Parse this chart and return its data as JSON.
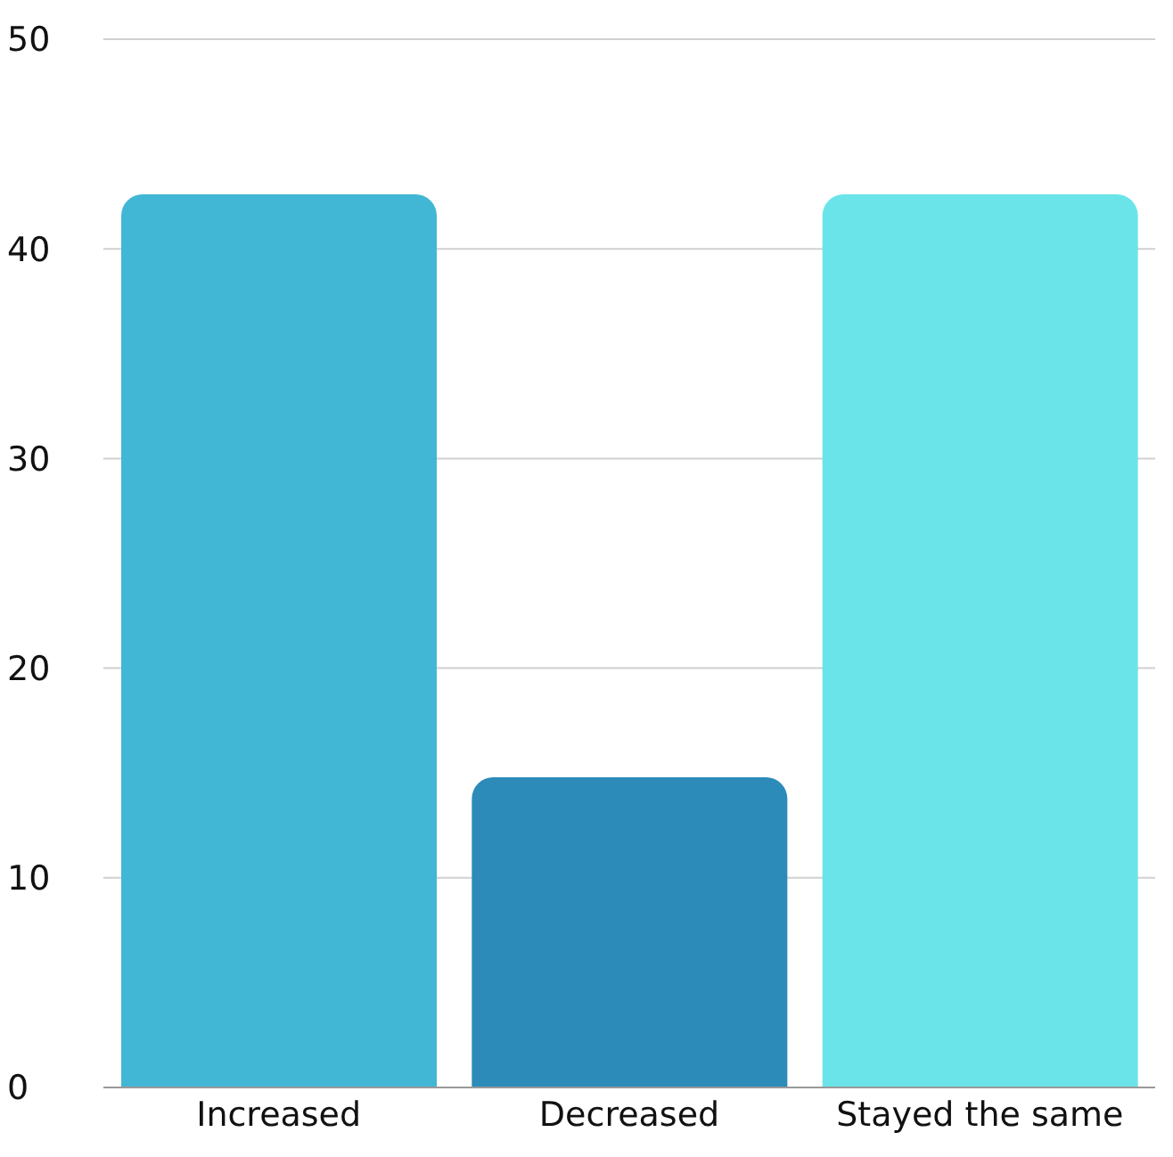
{
  "chart_data": {
    "type": "bar",
    "categories": [
      "Increased",
      "Decreased",
      "Stayed the same"
    ],
    "values": [
      42.6,
      14.8,
      42.6
    ],
    "colors": [
      "#42b7d5",
      "#2c8bb8",
      "#6ae4e9"
    ],
    "ylim": [
      0,
      50
    ],
    "yticks": [
      0,
      10,
      20,
      30,
      40,
      50
    ],
    "grid": "y"
  }
}
